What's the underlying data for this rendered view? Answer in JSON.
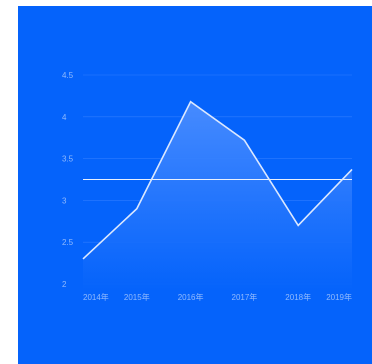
{
  "colors": {
    "background": "#0563fb",
    "line": "#dbe8ff",
    "reference_line": "#e8f0ff",
    "grid": "#2f7dff",
    "area_top": "#4a8dff",
    "area_bottom": "#0563fb"
  },
  "chart_data": {
    "type": "area",
    "categories": [
      "2014年",
      "2015年",
      "2016年",
      "2017年",
      "2018年",
      "2019年"
    ],
    "values": [
      2.3,
      2.9,
      4.18,
      3.72,
      2.7,
      3.37
    ],
    "reference_line": 3.25,
    "ylim": [
      2,
      4.5
    ],
    "yticks": [
      "2",
      "2.5",
      "3",
      "3.5",
      "4",
      "4.5"
    ],
    "grid": true,
    "legend": "none"
  }
}
